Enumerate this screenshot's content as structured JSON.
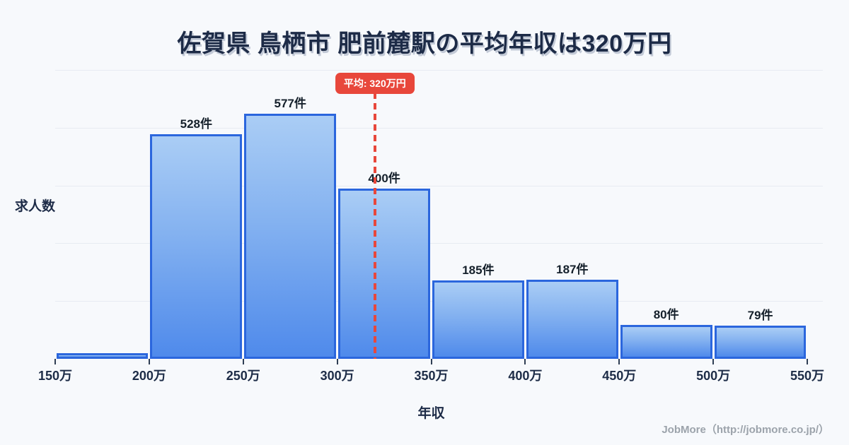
{
  "header": {
    "title": "佐賀県 鳥栖市 肥前麓駅の平均年収は320万円"
  },
  "chart_data": {
    "type": "bar",
    "subtype": "histogram",
    "title": "佐賀県 鳥栖市 肥前麓駅の平均年収は320万円",
    "xlabel": "年収",
    "ylabel": "求人数",
    "x_tick_labels": [
      "150万",
      "200万",
      "250万",
      "300万",
      "350万",
      "400万",
      "450万",
      "500万",
      "550万"
    ],
    "bin_edges": [
      150,
      200,
      250,
      300,
      350,
      400,
      450,
      500,
      550
    ],
    "values": [
      13,
      528,
      577,
      400,
      185,
      187,
      80,
      79
    ],
    "bar_labels": [
      "",
      "528件",
      "577件",
      "400件",
      "185件",
      "187件",
      "80件",
      "79件"
    ],
    "xlim": [
      150,
      550
    ],
    "ylim": [
      0,
      680
    ],
    "grid": "horizontal",
    "gridline_count": 5,
    "legend": "none",
    "mean": {
      "value": 320,
      "label": "平均: 320万円"
    }
  },
  "colors": {
    "background": "#f7f9fc",
    "bar_fill_top": "#aacdf5",
    "bar_fill_bottom": "#4f8aeb",
    "bar_border": "#2b66dd",
    "mean_line": "#e8473b",
    "badge_background": "#e8473b",
    "badge_text": "#ffffff",
    "title_text": "#1d2b47",
    "axis_text": "#1d2c47",
    "gridline": "#e7ebf2",
    "footer_text": "#9ca3ab"
  },
  "footer": {
    "credit": "JobMore（http://jobmore.co.jp/）"
  }
}
